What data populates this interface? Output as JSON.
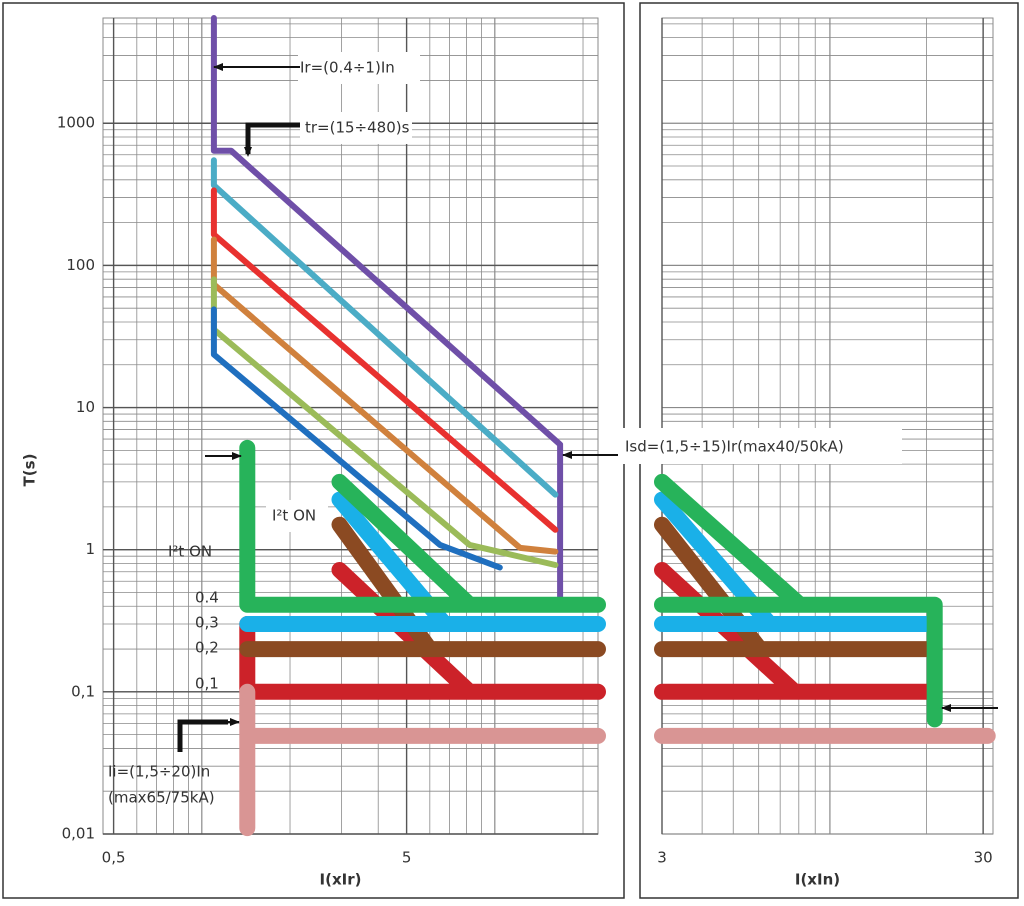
{
  "chart_data": [
    {
      "type": "line",
      "x_label": "I(xIr)",
      "y_label": "T(s)",
      "xscale": "log",
      "yscale": "log",
      "xlim": [
        0.46,
        22.5
      ],
      "ylim": [
        0.01,
        5500
      ],
      "xticks": [
        {
          "value": 0.5,
          "label": "0,5"
        },
        5
      ],
      "yticks": [
        {
          "value": 0.01,
          "label": "0,01"
        },
        {
          "value": 0.1,
          "label": "0,1"
        },
        1,
        10,
        100,
        1000
      ],
      "grid": true,
      "series": [
        {
          "color": "#6f4fa8",
          "x": [
            1.1,
            1.1,
            1.26,
            16.7,
            16.7
          ],
          "y": [
            5500,
            640,
            640,
            5.5,
            0.45
          ]
        },
        {
          "color": "#4bacc6",
          "x": [
            1.1,
            1.1,
            16.1
          ],
          "y": [
            549,
            366,
            2.44
          ]
        },
        {
          "color": "#e8312f",
          "x": [
            1.1,
            1.1,
            16.1
          ],
          "y": [
            337,
            165,
            1.38
          ]
        },
        {
          "color": "#d0813d",
          "x": [
            1.1,
            1.1,
            12.2,
            16.1
          ],
          "y": [
            152,
            73.5,
            1.03,
            0.97
          ]
        },
        {
          "color": "#9bbb59",
          "x": [
            1.1,
            1.1,
            8.2,
            16.1
          ],
          "y": [
            79.7,
            35.4,
            1.08,
            0.78
          ]
        },
        {
          "color": "#1f6fbf",
          "x": [
            1.1,
            1.1,
            6.5,
            10.4
          ],
          "y": [
            49,
            23.6,
            1.08,
            0.75
          ]
        }
      ],
      "short_time_series": [
        {
          "color": "#cc2229",
          "x": [
            1.43,
            1.43,
            22.5,
            null,
            2.95,
            8.2
          ],
          "y": [
            0.3,
            0.1,
            0.1,
            null,
            0.72,
            0.1
          ]
        },
        {
          "color": "#8b4a22",
          "x": [
            1.43,
            22.5,
            null,
            2.95,
            6.0
          ],
          "y": [
            0.2,
            0.2,
            null,
            1.5,
            0.2
          ]
        },
        {
          "color": "#1ab0e8",
          "x": [
            1.43,
            22.5,
            null,
            2.95,
            6.75
          ],
          "y": [
            0.3,
            0.3,
            null,
            2.25,
            0.3
          ]
        },
        {
          "color": "#27b35a",
          "x": [
            1.43,
            1.43,
            22.5,
            null,
            2.95,
            8.2
          ],
          "y": [
            5.2,
            0.41,
            0.41,
            null,
            3.0,
            0.41
          ]
        },
        {
          "color": "#d99594",
          "x": [
            1.43,
            1.43,
            null,
            1.43,
            22.5
          ],
          "y": [
            0.011,
            0.1,
            null,
            0.049,
            0.049
          ]
        }
      ],
      "annotations": [
        "Ir=(0.4÷1)In",
        "tr=(15÷480)s",
        "Isd=(1,5÷15)Ir(max40/50kA)",
        "I²t ON",
        "I²t ON",
        "0.4",
        "0,3",
        "0,2",
        "0,1",
        "Ii=(1,5÷20)In",
        "(max65/75kA)"
      ]
    },
    {
      "type": "line",
      "x_label": "I(xIn)",
      "xscale": "log",
      "yscale": "log",
      "xlim": [
        3,
        32.2
      ],
      "ylim": [
        0.01,
        5500
      ],
      "xticks": [
        3,
        30
      ],
      "grid": true,
      "short_time_series": [
        {
          "color": "#cc2229",
          "x": [
            3,
            21.2,
            null,
            3,
            7.77
          ],
          "y": [
            0.1,
            0.1,
            null,
            0.72,
            0.1
          ]
        },
        {
          "color": "#8b4a22",
          "x": [
            3,
            21.2,
            null,
            3,
            6.06
          ],
          "y": [
            0.2,
            0.2,
            null,
            1.5,
            0.2
          ]
        },
        {
          "color": "#1ab0e8",
          "x": [
            3,
            21.2,
            null,
            3,
            6.5
          ],
          "y": [
            0.3,
            0.3,
            null,
            2.25,
            0.3
          ]
        },
        {
          "color": "#27b35a",
          "x": [
            3,
            21.2,
            21.2,
            null,
            3,
            8.07
          ],
          "y": [
            0.41,
            0.41,
            0.064,
            null,
            3.0,
            0.41
          ]
        },
        {
          "color": "#d99594",
          "x": [
            3,
            31
          ],
          "y": [
            0.049,
            0.049
          ]
        }
      ]
    }
  ]
}
